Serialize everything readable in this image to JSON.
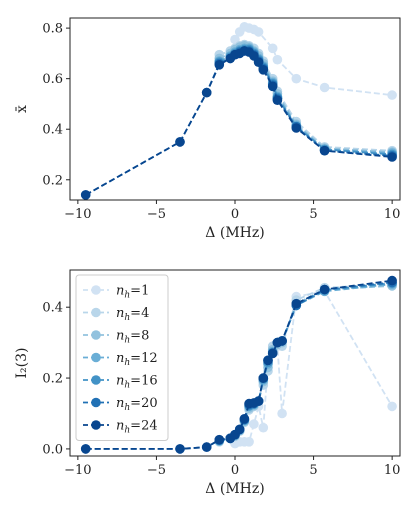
{
  "chart_data": [
    {
      "type": "line",
      "title": "",
      "xlabel": "Δ (MHz)",
      "ylabel": "x̄",
      "xlim": [
        -10.5,
        10.5
      ],
      "ylim": [
        0.12,
        0.84
      ],
      "xticks": [
        -10,
        -5,
        0,
        5,
        10
      ],
      "xtick_labels": [
        "−10",
        "−5",
        "0",
        "5",
        "10"
      ],
      "yticks": [
        0.2,
        0.4,
        0.6,
        0.8
      ],
      "ytick_labels": [
        "0.2",
        "0.4",
        "0.6",
        "0.8"
      ],
      "grid": false,
      "legend": "none",
      "series": [
        {
          "color": "#d1e2f3",
          "x": [
            0.0,
            0.3,
            0.6,
            0.9,
            1.2,
            1.5,
            2.4,
            2.7,
            3.9,
            5.7,
            10.0
          ],
          "y": [
            0.755,
            0.785,
            0.805,
            0.8,
            0.795,
            0.785,
            0.72,
            0.675,
            0.6,
            0.565,
            0.535
          ]
        },
        {
          "color": "#b9d6ea",
          "x": [
            -1.0,
            -0.3,
            0.0,
            0.3,
            0.6,
            0.9,
            1.2,
            1.5,
            1.8,
            2.4,
            2.7,
            3.9,
            5.7,
            10.0
          ],
          "y": [
            0.695,
            0.71,
            0.72,
            0.73,
            0.735,
            0.73,
            0.72,
            0.7,
            0.67,
            0.6,
            0.55,
            0.43,
            0.33,
            0.315
          ]
        },
        {
          "color": "#92c2de",
          "x": [
            -1.0,
            -0.3,
            0.0,
            0.3,
            0.6,
            0.9,
            1.2,
            1.5,
            1.8,
            2.4,
            2.7,
            3.9,
            5.7,
            10.0
          ],
          "y": [
            0.68,
            0.7,
            0.715,
            0.725,
            0.73,
            0.725,
            0.71,
            0.69,
            0.66,
            0.59,
            0.54,
            0.42,
            0.325,
            0.31
          ]
        },
        {
          "color": "#6aaed6",
          "x": [
            -1.0,
            -0.3,
            0.0,
            0.3,
            0.6,
            0.9,
            1.2,
            1.5,
            1.8,
            2.4,
            2.7,
            3.9,
            5.7,
            10.0
          ],
          "y": [
            0.67,
            0.69,
            0.705,
            0.715,
            0.72,
            0.72,
            0.705,
            0.68,
            0.65,
            0.585,
            0.53,
            0.415,
            0.32,
            0.305
          ]
        },
        {
          "color": "#4292c6",
          "x": [
            -1.0,
            -0.3,
            0.0,
            0.3,
            0.6,
            0.9,
            1.2,
            1.5,
            1.8,
            2.4,
            2.7,
            3.9,
            5.7,
            10.0
          ],
          "y": [
            0.665,
            0.685,
            0.7,
            0.71,
            0.715,
            0.715,
            0.7,
            0.675,
            0.645,
            0.58,
            0.525,
            0.41,
            0.32,
            0.3
          ]
        },
        {
          "color": "#2171b5",
          "x": [
            -9.5,
            -3.5,
            -1.8,
            -1.0,
            -0.3,
            0.0,
            0.3,
            0.6,
            0.9,
            1.2,
            1.5,
            1.8,
            2.4,
            2.7,
            3.9,
            5.7,
            10.0
          ],
          "y": [
            0.14,
            0.35,
            0.545,
            0.66,
            0.68,
            0.695,
            0.705,
            0.71,
            0.71,
            0.695,
            0.67,
            0.64,
            0.575,
            0.52,
            0.41,
            0.315,
            0.295
          ]
        },
        {
          "color": "#08468f",
          "x": [
            -9.5,
            -3.5,
            -1.8,
            -1.0,
            -0.3,
            0.0,
            0.3,
            0.6,
            0.9,
            1.2,
            1.5,
            1.8,
            2.4,
            2.7,
            3.9,
            5.7,
            10.0
          ],
          "y": [
            0.14,
            0.35,
            0.545,
            0.655,
            0.68,
            0.695,
            0.7,
            0.71,
            0.705,
            0.69,
            0.665,
            0.635,
            0.57,
            0.515,
            0.405,
            0.315,
            0.29
          ]
        }
      ]
    },
    {
      "type": "line",
      "title": "",
      "xlabel": "Δ (MHz)",
      "ylabel": "I₂(3)",
      "xlim": [
        -10.5,
        10.5
      ],
      "ylim": [
        -0.02,
        0.505
      ],
      "xticks": [
        -10,
        -5,
        0,
        5,
        10
      ],
      "xtick_labels": [
        "−10",
        "−5",
        "0",
        "5",
        "10"
      ],
      "yticks": [
        0.0,
        0.2,
        0.4
      ],
      "ytick_labels": [
        "0.0",
        "0.2",
        "0.4"
      ],
      "grid": false,
      "legend": "top-left",
      "series": [
        {
          "name": "n_h=1",
          "color": "#d1e2f3",
          "x": [
            0.0,
            0.3,
            0.6,
            0.9,
            1.2,
            1.5,
            1.8,
            2.1,
            2.4,
            2.7,
            3.0,
            3.9,
            5.7,
            10.0
          ],
          "y": [
            0.015,
            0.02,
            0.02,
            0.02,
            0.07,
            0.12,
            0.06,
            0.24,
            0.285,
            0.29,
            0.1,
            0.43,
            0.445,
            0.12
          ]
        },
        {
          "name": "n_h=4",
          "color": "#b9d6ea",
          "x": [
            -1.0,
            -0.3,
            0.0,
            0.3,
            0.6,
            0.9,
            1.2,
            1.5,
            1.8,
            2.1,
            2.4,
            2.7,
            3.0,
            3.9,
            5.7,
            10.0
          ],
          "y": [
            0.02,
            0.03,
            0.035,
            0.05,
            0.075,
            0.11,
            0.12,
            0.135,
            0.18,
            0.22,
            0.29,
            0.3,
            0.29,
            0.42,
            0.455,
            0.465
          ]
        },
        {
          "name": "n_h=8",
          "color": "#92c2de",
          "x": [
            -1.0,
            -0.3,
            0.0,
            0.3,
            0.6,
            0.9,
            1.2,
            1.5,
            1.8,
            2.1,
            2.4,
            2.7,
            3.0,
            3.9,
            5.7,
            10.0
          ],
          "y": [
            0.022,
            0.03,
            0.037,
            0.052,
            0.078,
            0.115,
            0.122,
            0.135,
            0.19,
            0.23,
            0.28,
            0.295,
            0.3,
            0.41,
            0.45,
            0.46
          ]
        },
        {
          "name": "n_h=12",
          "color": "#6aaed6",
          "x": [
            -1.0,
            -0.3,
            0.0,
            0.3,
            0.6,
            0.9,
            1.2,
            1.5,
            1.8,
            2.1,
            2.4,
            2.7,
            3.0,
            3.9,
            5.7,
            10.0
          ],
          "y": [
            0.023,
            0.03,
            0.038,
            0.053,
            0.08,
            0.12,
            0.125,
            0.135,
            0.195,
            0.24,
            0.275,
            0.3,
            0.305,
            0.405,
            0.445,
            0.465
          ]
        },
        {
          "name": "n_h=16",
          "color": "#4292c6",
          "x": [
            -1.0,
            -0.3,
            0.0,
            0.3,
            0.6,
            0.9,
            1.2,
            1.5,
            1.8,
            2.1,
            2.4,
            2.7,
            3.0,
            3.9,
            5.7,
            10.0
          ],
          "y": [
            0.024,
            0.03,
            0.04,
            0.055,
            0.082,
            0.122,
            0.127,
            0.135,
            0.198,
            0.245,
            0.272,
            0.3,
            0.305,
            0.405,
            0.448,
            0.468
          ]
        },
        {
          "name": "n_h=20",
          "color": "#2171b5",
          "x": [
            -9.5,
            -3.5,
            -1.8,
            -1.0,
            -0.3,
            0.0,
            0.3,
            0.6,
            0.9,
            1.2,
            1.5,
            1.8,
            2.1,
            2.4,
            2.7,
            3.0,
            3.9,
            5.7,
            10.0
          ],
          "y": [
            0.0,
            0.0,
            0.005,
            0.025,
            0.03,
            0.04,
            0.055,
            0.083,
            0.125,
            0.128,
            0.135,
            0.2,
            0.25,
            0.27,
            0.3,
            0.305,
            0.405,
            0.45,
            0.47
          ]
        },
        {
          "name": "n_h=24",
          "color": "#08468f",
          "x": [
            -9.5,
            -3.5,
            -1.8,
            -1.0,
            -0.3,
            0.0,
            0.3,
            0.6,
            0.9,
            1.2,
            1.5,
            1.8,
            2.1,
            2.4,
            2.7,
            3.0,
            3.9,
            5.7,
            10.0
          ],
          "y": [
            0.0,
            0.0,
            0.005,
            0.026,
            0.03,
            0.04,
            0.055,
            0.085,
            0.128,
            0.13,
            0.135,
            0.2,
            0.25,
            0.27,
            0.3,
            0.305,
            0.41,
            0.45,
            0.475
          ]
        }
      ]
    }
  ]
}
